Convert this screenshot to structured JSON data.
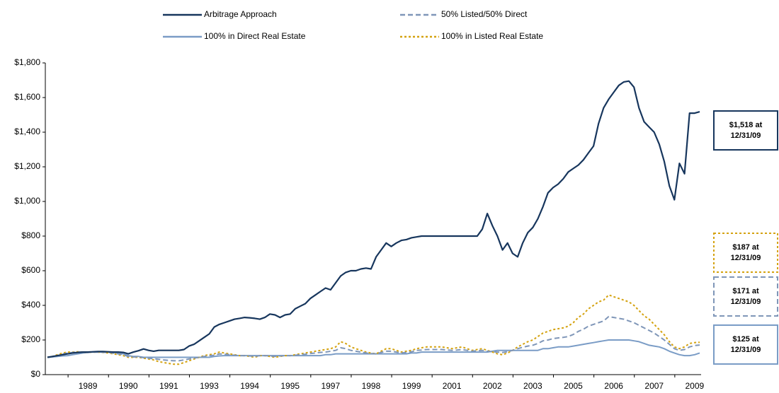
{
  "chart_data": {
    "type": "line",
    "categories": [
      null,
      null,
      null,
      null,
      null,
      null,
      null,
      null,
      "1989",
      null,
      null,
      null,
      null,
      null,
      null,
      null,
      "1990",
      null,
      null,
      null,
      null,
      null,
      null,
      null,
      "1991",
      null,
      null,
      null,
      null,
      null,
      null,
      null,
      "1993",
      null,
      null,
      null,
      null,
      null,
      null,
      null,
      "1994",
      null,
      null,
      null,
      null,
      null,
      null,
      null,
      "1995",
      null,
      null,
      null,
      null,
      null,
      null,
      null,
      "1997",
      null,
      null,
      null,
      null,
      null,
      null,
      null,
      "1998",
      null,
      null,
      null,
      null,
      null,
      null,
      null,
      "1999",
      null,
      null,
      null,
      null,
      null,
      null,
      null,
      "2001",
      null,
      null,
      null,
      null,
      null,
      null,
      null,
      "2002",
      null,
      null,
      null,
      null,
      null,
      null,
      null,
      "2003",
      null,
      null,
      null,
      null,
      null,
      null,
      null,
      "2005",
      null,
      null,
      null,
      null,
      null,
      null,
      null,
      "2006",
      null,
      null,
      null,
      null,
      null,
      null,
      null,
      "2007",
      null,
      null,
      null,
      null,
      null,
      null,
      null,
      "2009",
      null
    ],
    "series": [
      {
        "name": "Arbitrage Approach",
        "color": "#17365d",
        "line_style": "solid",
        "values": [
          100,
          105,
          110,
          115,
          120,
          125,
          128,
          130,
          130,
          132,
          133,
          133,
          132,
          130,
          130,
          128,
          120,
          130,
          138,
          148,
          140,
          135,
          140,
          140,
          140,
          140,
          140,
          145,
          165,
          175,
          195,
          215,
          235,
          275,
          290,
          300,
          310,
          320,
          325,
          330,
          328,
          325,
          320,
          330,
          350,
          345,
          330,
          345,
          350,
          380,
          395,
          410,
          440,
          460,
          480,
          500,
          490,
          530,
          570,
          590,
          600,
          600,
          610,
          615,
          610,
          680,
          720,
          760,
          740,
          760,
          775,
          780,
          790,
          795,
          800,
          800,
          800,
          800,
          800,
          800,
          800,
          800,
          800,
          800,
          800,
          800,
          840,
          930,
          860,
          800,
          720,
          760,
          700,
          680,
          760,
          820,
          850,
          900,
          970,
          1050,
          1080,
          1100,
          1130,
          1170,
          1190,
          1210,
          1240,
          1280,
          1320,
          1450,
          1540,
          1590,
          1630,
          1670,
          1690,
          1695,
          1660,
          1540,
          1460,
          1430,
          1400,
          1330,
          1230,
          1090,
          1010,
          1220,
          1160,
          1510,
          1510,
          1518
        ]
      },
      {
        "name": "50% Listed/50% Direct",
        "color": "#7f96b8",
        "line_style": "dashed",
        "values": [
          100,
          103,
          110,
          118,
          125,
          128,
          130,
          130,
          128,
          130,
          130,
          129,
          128,
          124,
          120,
          115,
          105,
          102,
          102,
          98,
          95,
          92,
          88,
          85,
          82,
          80,
          80,
          85,
          90,
          95,
          100,
          105,
          110,
          112,
          120,
          118,
          115,
          112,
          110,
          110,
          108,
          105,
          110,
          110,
          108,
          105,
          108,
          110,
          110,
          112,
          115,
          118,
          122,
          125,
          128,
          130,
          135,
          140,
          155,
          150,
          140,
          135,
          130,
          125,
          122,
          120,
          128,
          135,
          135,
          130,
          125,
          128,
          132,
          140,
          142,
          145,
          145,
          145,
          145,
          142,
          140,
          142,
          145,
          140,
          135,
          138,
          140,
          135,
          132,
          130,
          128,
          132,
          140,
          150,
          158,
          165,
          170,
          180,
          195,
          200,
          208,
          212,
          215,
          220,
          232,
          250,
          262,
          280,
          290,
          300,
          310,
          335,
          330,
          325,
          320,
          310,
          300,
          285,
          270,
          255,
          240,
          220,
          200,
          175,
          150,
          140,
          145,
          160,
          168,
          171
        ]
      },
      {
        "name": "100% in Direct Real Estate",
        "color": "#7a9cc6",
        "line_style": "solid",
        "values": [
          100,
          102,
          105,
          108,
          110,
          115,
          120,
          125,
          128,
          130,
          130,
          130,
          130,
          128,
          125,
          120,
          110,
          105,
          105,
          100,
          100,
          100,
          100,
          100,
          100,
          100,
          100,
          100,
          100,
          100,
          100,
          100,
          100,
          105,
          108,
          110,
          110,
          110,
          110,
          110,
          110,
          110,
          110,
          110,
          110,
          110,
          110,
          110,
          110,
          110,
          110,
          110,
          110,
          110,
          110,
          115,
          115,
          120,
          120,
          120,
          120,
          120,
          120,
          120,
          120,
          120,
          120,
          120,
          120,
          120,
          120,
          120,
          125,
          125,
          130,
          130,
          130,
          130,
          130,
          130,
          130,
          130,
          130,
          130,
          130,
          130,
          130,
          130,
          135,
          140,
          140,
          140,
          140,
          140,
          140,
          140,
          140,
          140,
          150,
          150,
          155,
          160,
          160,
          160,
          165,
          170,
          175,
          180,
          185,
          190,
          195,
          200,
          200,
          200,
          200,
          200,
          195,
          190,
          180,
          170,
          165,
          160,
          150,
          135,
          125,
          115,
          110,
          110,
          115,
          125
        ]
      },
      {
        "name": "100% in Listed Real Estate",
        "color": "#d4a20f",
        "line_style": "dotted",
        "values": [
          100,
          105,
          115,
          125,
          130,
          130,
          132,
          130,
          128,
          130,
          130,
          128,
          125,
          120,
          115,
          110,
          100,
          100,
          100,
          95,
          90,
          85,
          75,
          70,
          65,
          60,
          60,
          70,
          80,
          90,
          100,
          110,
          115,
          120,
          130,
          125,
          120,
          115,
          110,
          110,
          105,
          100,
          110,
          110,
          105,
          100,
          105,
          110,
          110,
          115,
          120,
          125,
          130,
          135,
          140,
          145,
          150,
          160,
          190,
          180,
          160,
          150,
          140,
          130,
          125,
          120,
          135,
          150,
          150,
          140,
          130,
          135,
          140,
          150,
          155,
          160,
          160,
          160,
          160,
          155,
          150,
          155,
          160,
          150,
          140,
          145,
          150,
          140,
          130,
          120,
          115,
          125,
          140,
          160,
          175,
          190,
          200,
          220,
          240,
          250,
          260,
          265,
          270,
          280,
          300,
          330,
          350,
          380,
          400,
          420,
          430,
          460,
          450,
          440,
          430,
          420,
          400,
          370,
          340,
          320,
          290,
          260,
          230,
          190,
          160,
          150,
          160,
          180,
          185,
          187
        ]
      }
    ],
    "ylim": [
      0,
      1800
    ],
    "yticks": [
      {
        "value": 0,
        "label": "$0"
      },
      {
        "value": 200,
        "label": "$200"
      },
      {
        "value": 400,
        "label": "$400"
      },
      {
        "value": 600,
        "label": "$600"
      },
      {
        "value": 800,
        "label": "$800"
      },
      {
        "value": 1000,
        "label": "$1,000"
      },
      {
        "value": 1200,
        "label": "$1,200"
      },
      {
        "value": 1400,
        "label": "$1,400"
      },
      {
        "value": 1600,
        "label": "$1,600"
      },
      {
        "value": 1800,
        "label": "$1,800"
      }
    ],
    "grid": false,
    "legend": "top",
    "annotations": [
      {
        "series": 0,
        "text": [
          "$1,518 at",
          "12/31/09"
        ]
      },
      {
        "series": 3,
        "text": [
          "$187 at",
          "12/31/09"
        ]
      },
      {
        "series": 1,
        "text": [
          "$171 at",
          "12/31/09"
        ]
      },
      {
        "series": 2,
        "text": [
          "$125 at",
          "12/31/09"
        ]
      }
    ]
  }
}
